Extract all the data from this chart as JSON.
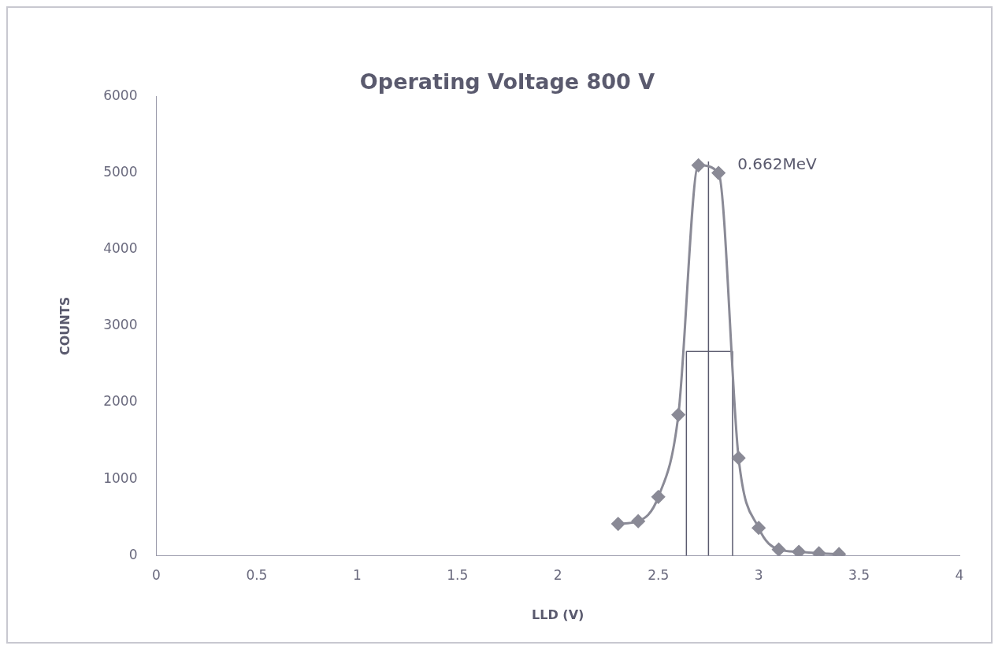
{
  "chart_data": {
    "type": "line",
    "title": "Operating Voltage 800 V",
    "xlabel": "LLD (V)",
    "ylabel": "COUNTS",
    "xlim": [
      0,
      4
    ],
    "xticks": [
      0,
      0.5,
      1,
      1.5,
      2,
      2.5,
      3,
      3.5,
      4
    ],
    "ylim": [
      0,
      6000
    ],
    "yticks": [
      0,
      1000,
      2000,
      3000,
      4000,
      5000,
      6000
    ],
    "grid": false,
    "legend": false,
    "marker": "diamond",
    "line_style": "solid",
    "series": [
      {
        "color": "#8a8a96",
        "x": [
          2.3,
          2.4,
          2.5,
          2.6,
          2.7,
          2.8,
          2.9,
          3.0,
          3.1,
          3.2,
          3.3,
          3.4
        ],
        "values": [
          415,
          450,
          767,
          1840,
          5100,
          5000,
          1276,
          362,
          80,
          50,
          30,
          20
        ]
      },
      {
        "type": "line",
        "marker": "none",
        "color": "#5a5a6e",
        "x": [
          2.64,
          2.64,
          2.87,
          2.87
        ],
        "values": [
          0,
          2666,
          2666,
          0
        ]
      },
      {
        "type": "line",
        "marker": "none",
        "color": "#5a5a6e",
        "x": [
          2.75,
          2.75
        ],
        "values": [
          0,
          5150
        ]
      }
    ],
    "annotations": [
      {
        "text": "0.662MeV",
        "x": 2.8,
        "y": 5000
      }
    ]
  }
}
